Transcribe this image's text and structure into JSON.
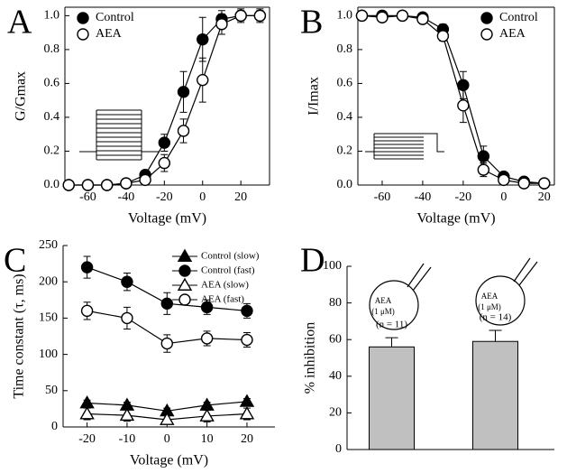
{
  "chart_data": [
    {
      "type": "line",
      "panel_label": "A",
      "xlabel": "Voltage (mV)",
      "ylabel": "G/Gmax",
      "x": [
        -70,
        -60,
        -50,
        -40,
        -30,
        -20,
        -10,
        0,
        10,
        20,
        30
      ],
      "series": [
        {
          "name": "Control",
          "color": "#000000",
          "marker": "circle",
          "fill": "filled",
          "values": [
            0,
            0,
            0,
            0.01,
            0.06,
            0.25,
            0.55,
            0.86,
            0.98,
            1.0,
            1.0
          ],
          "errors": [
            0.01,
            0.01,
            0.01,
            0.01,
            0.02,
            0.05,
            0.12,
            0.13,
            0.05,
            0.04,
            0.04
          ]
        },
        {
          "name": "AEA",
          "color": "#000000",
          "marker": "circle",
          "fill": "open",
          "values": [
            0,
            0,
            0,
            0.01,
            0.03,
            0.13,
            0.32,
            0.62,
            0.95,
            1.0,
            1.0
          ],
          "errors": [
            0.01,
            0.01,
            0.01,
            0.01,
            0.02,
            0.05,
            0.07,
            0.13,
            0.06,
            0.03,
            0.03
          ]
        }
      ],
      "xlim": [
        -72,
        35
      ],
      "xticks": [
        -60,
        -40,
        -20,
        0,
        20
      ],
      "ylim": [
        0,
        1.05
      ],
      "yticks": [
        {
          "value": 0,
          "label": "0.0"
        },
        0.2,
        0.4,
        0.6,
        0.8,
        {
          "value": 1,
          "label": "1.0"
        }
      ],
      "legend": "upper left",
      "frame": true
    },
    {
      "type": "line",
      "panel_label": "B",
      "xlabel": "Voltage (mV)",
      "ylabel": "I/Imax",
      "x": [
        -70,
        -60,
        -50,
        -40,
        -30,
        -20,
        -10,
        0,
        10,
        20
      ],
      "series": [
        {
          "name": "Control",
          "color": "#000000",
          "marker": "circle",
          "fill": "filled",
          "values": [
            1.0,
            1.0,
            1.0,
            0.99,
            0.92,
            0.59,
            0.17,
            0.05,
            0.02,
            0.01
          ],
          "errors": [
            0.01,
            0.02,
            0.01,
            0.01,
            0.03,
            0.08,
            0.06,
            0.02,
            0.01,
            0.01
          ]
        },
        {
          "name": "AEA",
          "color": "#000000",
          "marker": "circle",
          "fill": "open",
          "values": [
            1.0,
            0.99,
            1.0,
            0.98,
            0.88,
            0.47,
            0.09,
            0.03,
            0.01,
            0.01
          ],
          "errors": [
            0.01,
            0.02,
            0.01,
            0.01,
            0.03,
            0.1,
            0.04,
            0.02,
            0.01,
            0.01
          ]
        }
      ],
      "xlim": [
        -72,
        25
      ],
      "xticks": [
        -60,
        -40,
        -20,
        0,
        20
      ],
      "ylim": [
        0,
        1.05
      ],
      "yticks": [
        {
          "value": 0,
          "label": "0.0"
        },
        0.2,
        0.4,
        0.6,
        0.8,
        {
          "value": 1,
          "label": "1.0"
        }
      ],
      "legend": "upper right",
      "frame": true
    },
    {
      "type": "line",
      "panel_label": "C",
      "xlabel": "Voltage (mV)",
      "ylabel": "Time constant (τ, ms)",
      "x": [
        -20,
        -10,
        0,
        10,
        20
      ],
      "series": [
        {
          "name": "Control (slow)",
          "color": "#000000",
          "marker": "triangle",
          "fill": "filled",
          "values": [
            33,
            30,
            22,
            30,
            35
          ],
          "errors": [
            4,
            4,
            4,
            4,
            4
          ]
        },
        {
          "name": "Control (fast)",
          "color": "#000000",
          "marker": "circle",
          "fill": "filled",
          "values": [
            220,
            200,
            170,
            165,
            160
          ],
          "errors": [
            15,
            12,
            15,
            10,
            10
          ]
        },
        {
          "name": "AEA (slow)",
          "color": "#000000",
          "marker": "triangle",
          "fill": "open",
          "values": [
            18,
            16,
            10,
            15,
            18
          ],
          "errors": [
            8,
            8,
            6,
            8,
            8
          ]
        },
        {
          "name": "AEA (fast)",
          "color": "#000000",
          "marker": "circle",
          "fill": "open",
          "values": [
            160,
            150,
            115,
            122,
            120
          ],
          "errors": [
            12,
            15,
            12,
            10,
            10
          ]
        }
      ],
      "xlim": [
        -26,
        27
      ],
      "xticks": [
        -20,
        -10,
        0,
        10,
        20
      ],
      "ylim": [
        0,
        250
      ],
      "yticks": [
        0,
        50,
        100,
        150,
        200,
        250
      ],
      "legend": "upper right",
      "frame": false
    },
    {
      "type": "bar",
      "panel_label": "D",
      "ylabel": "% inhibition",
      "categories": [
        null,
        null
      ],
      "values": [
        56,
        59
      ],
      "errors": [
        5,
        6
      ],
      "color": "#c0c0c0",
      "n_labels": [
        "(n = 11)",
        "(n = 14)"
      ],
      "insets": [
        [
          "AEA",
          "(1 μM)"
        ],
        [
          "AEA",
          "(1 μM)"
        ]
      ],
      "ylim": [
        0,
        100
      ],
      "yticks": [
        0,
        20,
        40,
        60,
        80,
        100
      ]
    }
  ]
}
